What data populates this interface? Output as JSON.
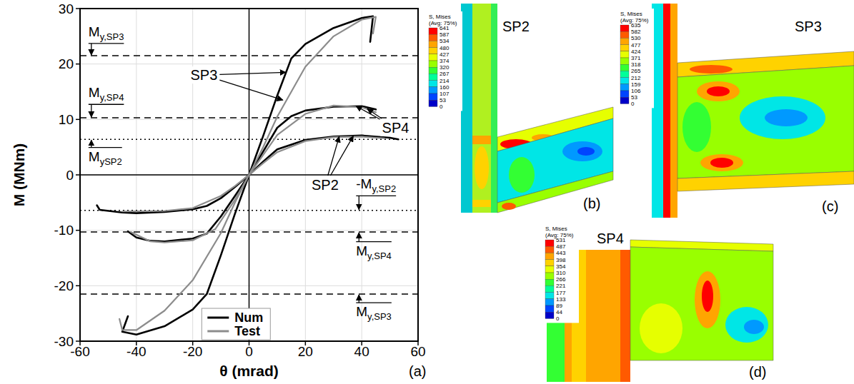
{
  "chart_data": {
    "type": "line",
    "panel_label": "(a)",
    "x_label": "θ (mrad)",
    "y_label": "M (MNm)",
    "xlim": [
      -60,
      60
    ],
    "xticks": [
      -60,
      -40,
      -20,
      0,
      20,
      40,
      60
    ],
    "ylim": [
      -30,
      30
    ],
    "yticks": [
      -30,
      -20,
      -10,
      0,
      10,
      20,
      30
    ],
    "grid": true,
    "legend": "bottom",
    "series": [
      {
        "name": "Num",
        "color": "#000000",
        "lines": [
          {
            "x": [
              -43,
              -45,
              -40,
              -30,
              -20,
              -15,
              -10,
              -5,
              0,
              5,
              10,
              15,
              20,
              30,
              40,
              44,
              43
            ],
            "values": [
              -25.5,
              -28.3,
              -28.8,
              -27.3,
              -24.3,
              -21.5,
              -14.5,
              -7,
              0,
              7,
              14.3,
              21,
              23.6,
              26.5,
              28.3,
              28.6,
              24
            ]
          },
          {
            "x": [
              -43,
              -40,
              -35,
              -30,
              -20,
              -15,
              -10,
              -5,
              0,
              5,
              10,
              15,
              20,
              30,
              40,
              45
            ],
            "values": [
              -10.2,
              -11.3,
              -11.9,
              -12,
              -11.5,
              -10.6,
              -7.5,
              -3.8,
              0,
              4.2,
              8.5,
              10.6,
              11.6,
              12.3,
              12.4,
              11.8
            ]
          },
          {
            "x": [
              -54,
              -53,
              -45,
              -40,
              -30,
              -20,
              -15,
              -10,
              -5,
              0,
              5,
              10,
              20,
              30,
              40,
              50,
              53
            ],
            "values": [
              -5.5,
              -6.3,
              -6.8,
              -6.9,
              -6.7,
              -6.2,
              -5.6,
              -4.2,
              -2.2,
              0,
              2.4,
              4.6,
              6.3,
              6.9,
              7.1,
              6.7,
              6.4
            ]
          }
        ]
      },
      {
        "name": "Test",
        "color": "#8c8c8c",
        "lines": [
          {
            "x": [
              -46,
              -45,
              -40,
              -30,
              -20,
              -10,
              -5,
              0,
              5,
              10,
              20,
              30,
              40,
              45,
              44
            ],
            "values": [
              -26,
              -28,
              -28,
              -24.5,
              -19,
              -10.5,
              -5,
              0,
              5,
              10.5,
              19.5,
              25,
              28,
              28.5,
              25.5
            ]
          },
          {
            "x": [
              -42,
              -35,
              -30,
              -20,
              -12,
              -5,
              0,
              5,
              10,
              20,
              30,
              40,
              45
            ],
            "values": [
              -10.3,
              -12,
              -12.2,
              -11.8,
              -9.8,
              -4.5,
              0,
              3.6,
              7.2,
              11,
              12.5,
              12.2,
              11.3
            ]
          },
          {
            "x": [
              -45,
              -30,
              -20,
              -10,
              -5,
              0,
              5,
              10,
              20,
              30,
              40,
              48
            ],
            "values": [
              -6.6,
              -6.5,
              -6,
              -3.8,
              -2,
              0,
              2.1,
              4.1,
              6.1,
              6.8,
              6.9,
              6.6
            ]
          }
        ]
      }
    ],
    "ref_lines": [
      {
        "value": 21.5,
        "line_style": "dashed",
        "label": "My,SP3",
        "label_x": -57,
        "label_y": 25
      },
      {
        "value": 10.3,
        "line_style": "dashed",
        "label": "My,SP4",
        "label_x": -57,
        "label_y": 14
      },
      {
        "value": 6.4,
        "line_style": "dotted",
        "label": "MySP2",
        "label_x": -57,
        "label_y": 2.5
      },
      {
        "value": -6.4,
        "line_style": "dotted",
        "label": "-My,SP2",
        "label_x": 38,
        "label_y": -2.5
      },
      {
        "value": -10.3,
        "line_style": "dashed",
        "label": "My,SP4",
        "label_x": 38,
        "label_y": -14.5
      },
      {
        "value": -21.5,
        "line_style": "dashed",
        "label": "My,SP3",
        "label_x": 38,
        "label_y": -25.5
      }
    ],
    "annotations": [
      {
        "text": "SP3",
        "x": -16,
        "y": 18,
        "arrows": [
          [
            13,
            18.5
          ],
          [
            12,
            13.5
          ]
        ]
      },
      {
        "text": "SP4",
        "x": 52,
        "y": 8.5,
        "arrows": [
          [
            38,
            12.4
          ],
          [
            42,
            11.9
          ]
        ]
      },
      {
        "text": "SP2",
        "x": 27,
        "y": -1.8,
        "arrows": [
          [
            32,
            6.9
          ],
          [
            37,
            7.0
          ]
        ]
      }
    ]
  },
  "panels": [
    {
      "title": "SP2",
      "label": "(b)",
      "colorbar_title": [
        "S, Mises",
        "(Avg: 75%)"
      ],
      "colorbar_ticks": [
        641,
        587,
        534,
        480,
        427,
        374,
        320,
        267,
        214,
        160,
        107,
        53,
        0
      ]
    },
    {
      "title": "SP3",
      "label": "(c)",
      "colorbar_title": [
        "S, Mises",
        "(Avg: 75%)"
      ],
      "colorbar_ticks": [
        635,
        582,
        530,
        477,
        424,
        371,
        318,
        265,
        212,
        159,
        106,
        53,
        0
      ]
    },
    {
      "title": "SP4",
      "label": "(d)",
      "colorbar_title": [
        "S, Mises",
        "(Avg: 75%)"
      ],
      "colorbar_ticks": [
        531,
        487,
        443,
        398,
        354,
        310,
        266,
        221,
        177,
        133,
        89,
        44,
        0
      ]
    }
  ]
}
